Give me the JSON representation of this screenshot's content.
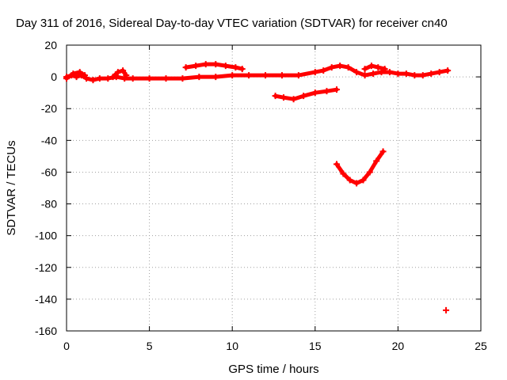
{
  "chart_data": {
    "type": "scatter",
    "title": "Day 311 of 2016, Sidereal Day-to-day VTEC variation (SDTVAR) for receiver cn40",
    "xlabel": "GPS time / hours",
    "ylabel": "SDTVAR / TECUs",
    "xlim": [
      0,
      25
    ],
    "ylim": [
      -160,
      20
    ],
    "xticks": [
      0,
      5,
      10,
      15,
      20,
      25
    ],
    "yticks": [
      20,
      0,
      -20,
      -40,
      -60,
      -80,
      -100,
      -120,
      -140,
      -160
    ],
    "grid": true,
    "color": "#ff0000",
    "series": [
      {
        "x": [
          0.0,
          0.3,
          0.6,
          0.9,
          1.2,
          1.6,
          2.0,
          2.5,
          3.0,
          3.5,
          4.0,
          5.0,
          6.0,
          7.0,
          8.0,
          9.0,
          10.0,
          11.0,
          12.0,
          13.0,
          14.0,
          15.0,
          15.5,
          16.0,
          16.5,
          17.0,
          17.5,
          18.0,
          18.5,
          19.0,
          19.5,
          20.0,
          20.5,
          21.0,
          21.5,
          22.0,
          22.5,
          23.0
        ],
        "y": [
          0,
          1,
          0,
          1,
          -1,
          -2,
          -1,
          -1,
          0,
          -1,
          -1,
          -1,
          -1,
          -1,
          0,
          0,
          1,
          1,
          1,
          1,
          1,
          3,
          4,
          6,
          7,
          6,
          3,
          1,
          2,
          3,
          3,
          2,
          2,
          1,
          1,
          2,
          3,
          4
        ]
      },
      {
        "x": [
          0.0,
          0.4,
          0.8,
          1.1
        ],
        "y": [
          -1,
          2,
          3,
          1
        ]
      },
      {
        "x": [
          2.8,
          3.1,
          3.4,
          3.6
        ],
        "y": [
          0,
          3,
          4,
          1
        ]
      },
      {
        "x": [
          7.2,
          7.8,
          8.4,
          9.0,
          9.6,
          10.2,
          10.6
        ],
        "y": [
          6,
          7,
          8,
          8,
          7,
          6,
          5
        ]
      },
      {
        "x": [
          12.6,
          13.1,
          13.7,
          14.3,
          15.0,
          15.7,
          16.3
        ],
        "y": [
          -12,
          -13,
          -14,
          -12,
          -10,
          -9,
          -8
        ]
      },
      {
        "x": [
          18.0,
          18.4,
          18.8,
          19.2
        ],
        "y": [
          5,
          7,
          6,
          5
        ]
      },
      {
        "x": [
          16.3,
          16.7,
          17.1,
          17.5,
          17.9,
          18.3,
          18.7,
          19.1
        ],
        "y": [
          -55,
          -61,
          -65,
          -67,
          -65,
          -60,
          -53,
          -47
        ]
      },
      {
        "x": [
          22.9
        ],
        "y": [
          -147
        ]
      }
    ]
  }
}
